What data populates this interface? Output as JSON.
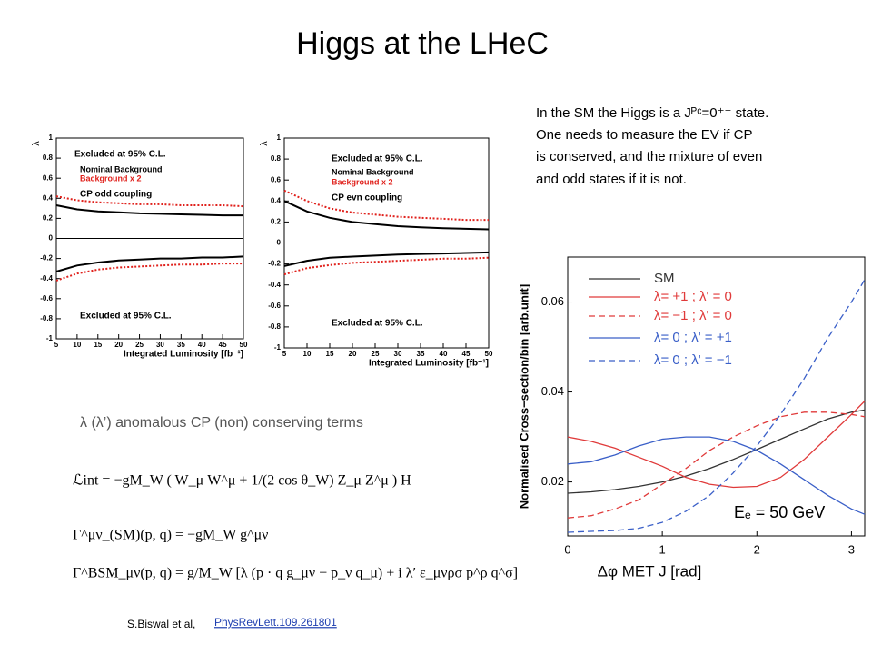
{
  "title": "Higgs at the LHeC",
  "text": [
    "In the SM the Higgs is a Jᴾᶜ=0⁺⁺ state.",
    "One needs to measure the EV if CP",
    "is conserved, and the mixture of even",
    "and odd states if it is not."
  ],
  "caption": "λ (λ’) anomalous CP (non) conserving terms",
  "equations": [
    "ℒint = −gM_W ( W_μ W^μ + 1/(2 cos θ_W) Z_μ Z^μ ) H",
    "Γ^μν_(SM)(p, q) =  −gM_W g^μν",
    "Γ^BSM_μν(p, q) = g/M_W [λ (p · q g_μν − p_ν q_μ) + i λ′ ε_μνρσ p^ρ q^σ]"
  ],
  "citation": "S.Biswal et al,",
  "link": "PhysRevLett.109.261801",
  "chart_data": [
    {
      "type": "line",
      "x_label": "Integrated Luminosity [fb⁻¹]",
      "y_label": "λ",
      "x": [
        5,
        10,
        15,
        20,
        25,
        30,
        35,
        40,
        45,
        50
      ],
      "xlim": [
        5,
        50
      ],
      "xticks": [
        5,
        10,
        15,
        20,
        25,
        30,
        35,
        40,
        45,
        50
      ],
      "ylim": [
        -1,
        1
      ],
      "yticks": [
        -1,
        -0.8,
        -0.6,
        -0.4,
        -0.2,
        0,
        0.2,
        0.4,
        0.6,
        0.8,
        1
      ],
      "annotations": [
        "Excluded at 95% C.L.",
        "CP odd coupling",
        "Excluded at 95% C.L."
      ],
      "series": [
        {
          "name": "Nominal Background",
          "color": "#000000",
          "style": "solid",
          "values": [
            0.33,
            0.29,
            0.27,
            0.26,
            0.25,
            0.245,
            0.24,
            0.235,
            0.23,
            0.23
          ]
        },
        {
          "color": "#000000",
          "style": "solid",
          "values": [
            -0.33,
            -0.27,
            -0.24,
            -0.22,
            -0.21,
            -0.2,
            -0.2,
            -0.19,
            -0.19,
            -0.18
          ]
        },
        {
          "name": "Background x 2",
          "color": "#e0201b",
          "style": "dotted",
          "values": [
            0.42,
            0.38,
            0.36,
            0.35,
            0.34,
            0.34,
            0.33,
            0.33,
            0.33,
            0.32
          ]
        },
        {
          "color": "#e0201b",
          "style": "dotted",
          "values": [
            -0.42,
            -0.35,
            -0.31,
            -0.29,
            -0.28,
            -0.27,
            -0.26,
            -0.26,
            -0.25,
            -0.25
          ]
        }
      ]
    },
    {
      "type": "line",
      "x_label": "Integrated Luminosity [fb⁻¹]",
      "y_label": "λ",
      "x": [
        5,
        10,
        15,
        20,
        25,
        30,
        35,
        40,
        45,
        50
      ],
      "xlim": [
        5,
        50
      ],
      "xticks": [
        5,
        10,
        15,
        20,
        25,
        30,
        35,
        40,
        45,
        50
      ],
      "ylim": [
        -1,
        1
      ],
      "yticks": [
        -1,
        -0.8,
        -0.6,
        -0.4,
        -0.2,
        0,
        0.2,
        0.4,
        0.6,
        0.8,
        1
      ],
      "annotations": [
        "Excluded at 95% C.L.",
        "CP evn coupling",
        "Excluded at 95% C.L."
      ],
      "series": [
        {
          "name": "Nominal Background",
          "color": "#000000",
          "style": "solid",
          "values": [
            0.4,
            0.3,
            0.24,
            0.2,
            0.18,
            0.16,
            0.15,
            0.14,
            0.135,
            0.13
          ]
        },
        {
          "color": "#000000",
          "style": "solid",
          "values": [
            -0.22,
            -0.17,
            -0.14,
            -0.13,
            -0.12,
            -0.11,
            -0.105,
            -0.1,
            -0.095,
            -0.09
          ]
        },
        {
          "name": "Background x 2",
          "color": "#e0201b",
          "style": "dotted",
          "values": [
            0.5,
            0.4,
            0.33,
            0.29,
            0.27,
            0.25,
            0.24,
            0.23,
            0.22,
            0.22
          ]
        },
        {
          "color": "#e0201b",
          "style": "dotted",
          "values": [
            -0.3,
            -0.24,
            -0.21,
            -0.19,
            -0.18,
            -0.17,
            -0.16,
            -0.15,
            -0.15,
            -0.14
          ]
        }
      ]
    },
    {
      "type": "line",
      "x_label": "Δφ MET J [rad]",
      "y_label": "Normalised Cross−section/bin [arb.unit]",
      "x": [
        0,
        0.25,
        0.5,
        0.75,
        1,
        1.25,
        1.5,
        1.75,
        2,
        2.25,
        2.5,
        2.75,
        3,
        3.14
      ],
      "xlim": [
        0,
        3.14
      ],
      "xticks": [
        0,
        1,
        2,
        3
      ],
      "ylim": [
        0.008,
        0.07
      ],
      "yticks": [
        0.02,
        0.04,
        0.06
      ],
      "annotations": [
        "Eₑ = 50 GeV"
      ],
      "series": [
        {
          "name": "SM",
          "color": "#333333",
          "style": "solid",
          "values": [
            0.0175,
            0.0178,
            0.0183,
            0.019,
            0.02,
            0.0213,
            0.023,
            0.025,
            0.0272,
            0.0295,
            0.0318,
            0.034,
            0.0355,
            0.036
          ]
        },
        {
          "name": "λ= +1 ; λ' = 0",
          "color": "#e03a3a",
          "style": "solid",
          "values": [
            0.03,
            0.029,
            0.0275,
            0.0255,
            0.0235,
            0.021,
            0.0195,
            0.0188,
            0.019,
            0.021,
            0.025,
            0.03,
            0.035,
            0.038
          ]
        },
        {
          "name": "λ= −1 ; λ' = 0",
          "color": "#e03a3a",
          "style": "dashed",
          "values": [
            0.012,
            0.0125,
            0.014,
            0.016,
            0.0195,
            0.023,
            0.027,
            0.03,
            0.0325,
            0.0345,
            0.0355,
            0.0355,
            0.035,
            0.0345
          ]
        },
        {
          "name": "λ= 0 ; λ' = +1",
          "color": "#3a5fc8",
          "style": "solid",
          "values": [
            0.024,
            0.0245,
            0.026,
            0.028,
            0.0295,
            0.03,
            0.03,
            0.029,
            0.027,
            0.024,
            0.0205,
            0.017,
            0.014,
            0.0128
          ]
        },
        {
          "name": "λ= 0 ; λ' = −1",
          "color": "#3a5fc8",
          "style": "dashed",
          "values": [
            0.0088,
            0.009,
            0.0092,
            0.0097,
            0.011,
            0.0135,
            0.017,
            0.022,
            0.028,
            0.035,
            0.043,
            0.052,
            0.06,
            0.065
          ]
        }
      ]
    }
  ]
}
